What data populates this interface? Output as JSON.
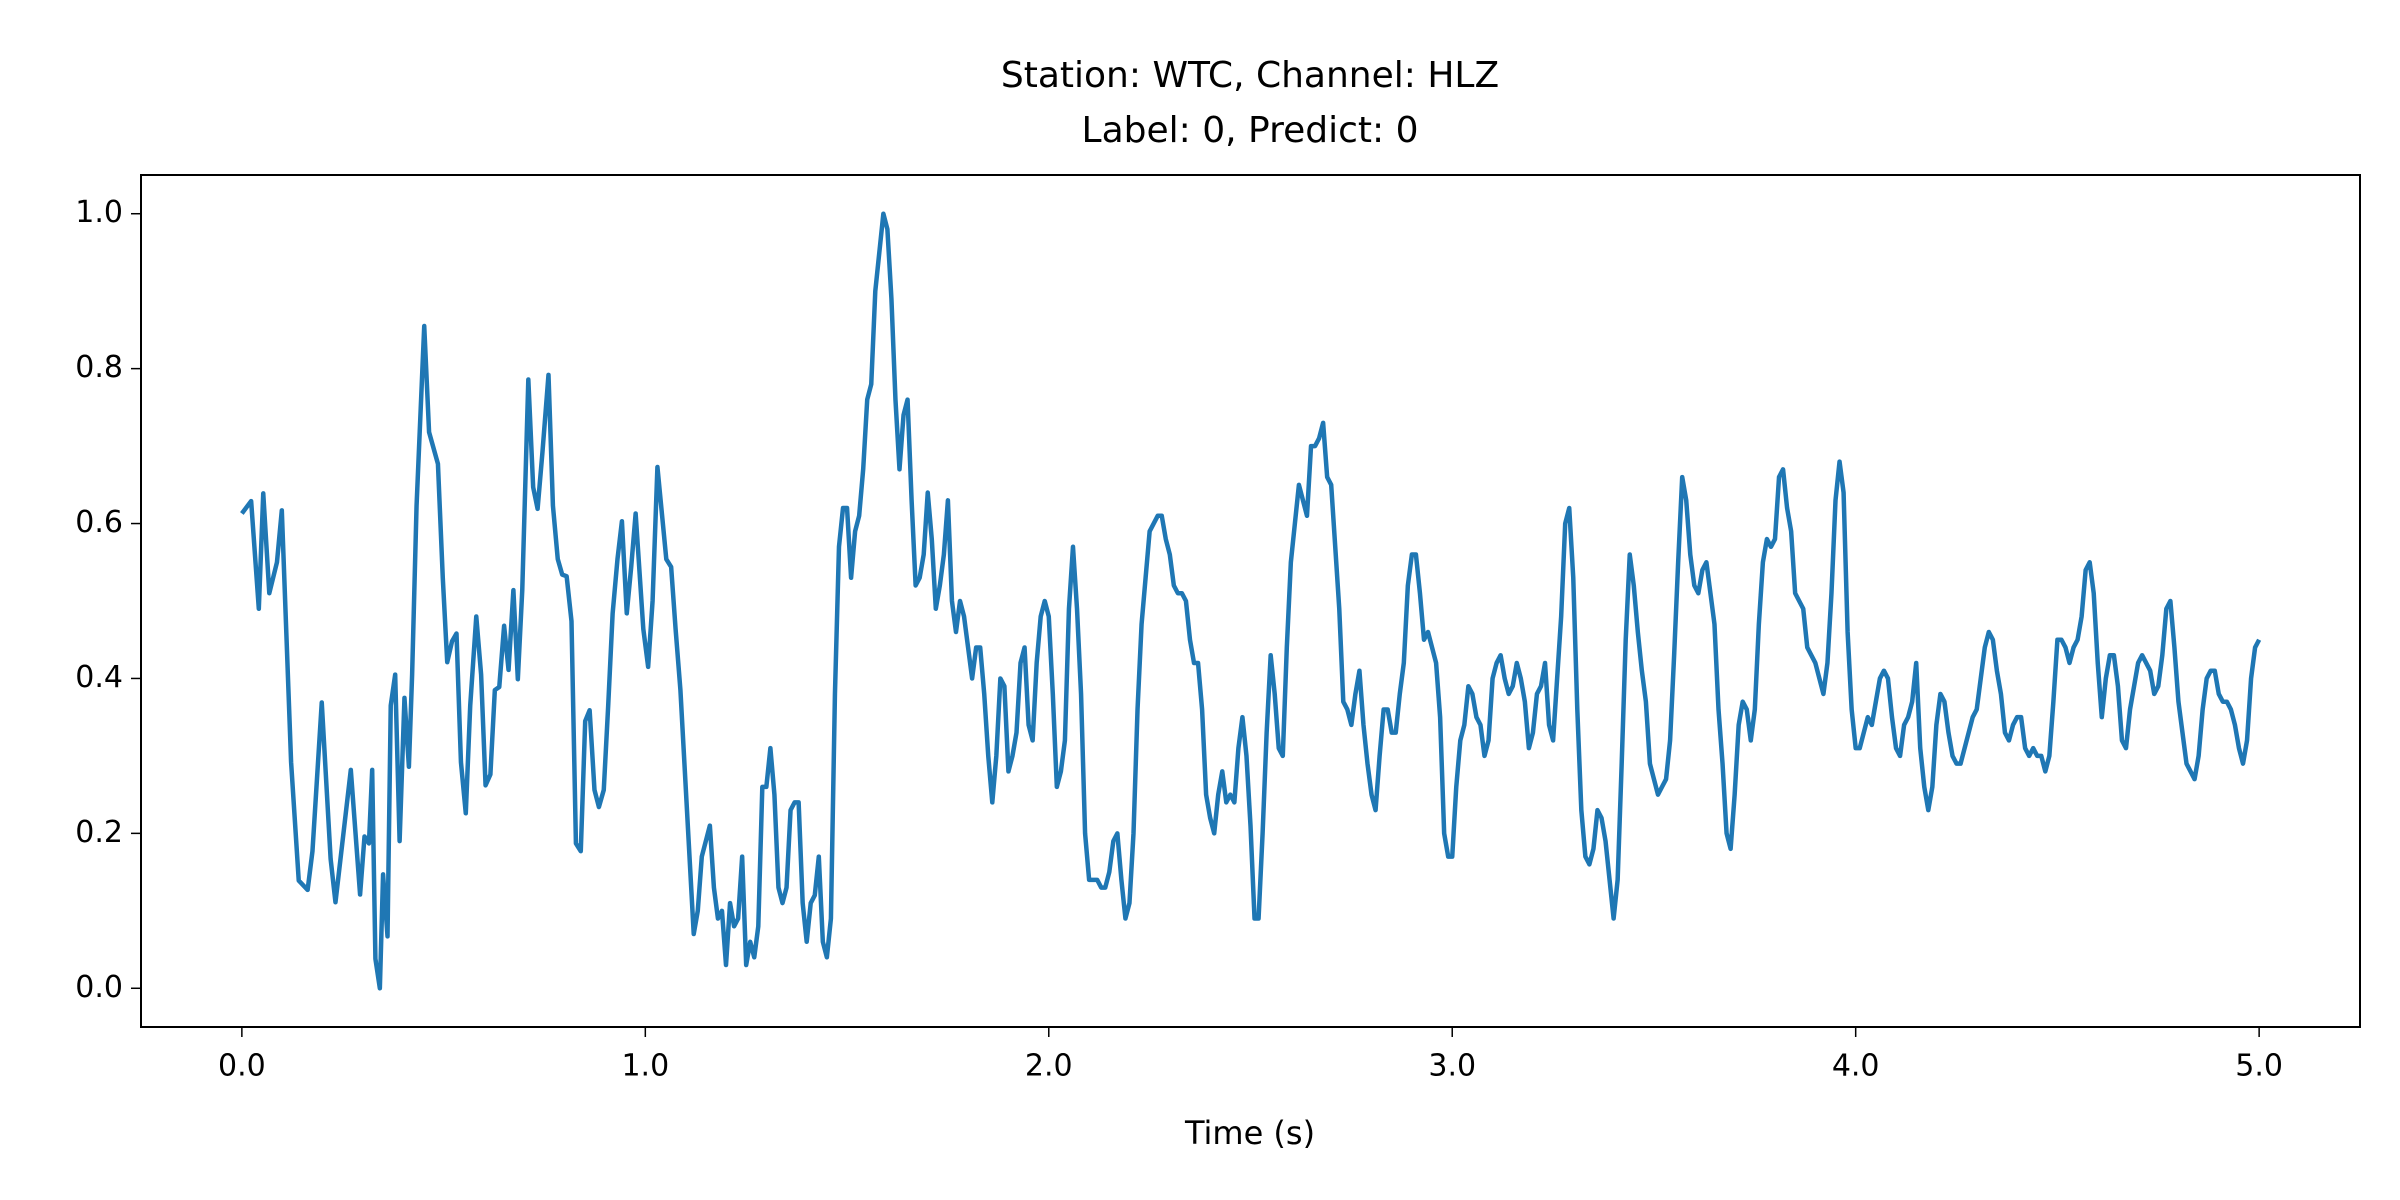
{
  "chart_data": {
    "type": "line",
    "title": [
      "Station: WTC, Channel: HLZ",
      "Label: 0, Predict: 0"
    ],
    "xlabel": "Time (s)",
    "color": "#1f77b4",
    "xlim": [
      -0.25,
      5.25
    ],
    "ylim": [
      -0.05,
      1.05
    ],
    "xticks": [
      {
        "value": 0,
        "label": "0.0"
      },
      {
        "value": 1,
        "label": "1.0"
      },
      {
        "value": 2,
        "label": "2.0"
      },
      {
        "value": 3,
        "label": "3.0"
      },
      {
        "value": 4,
        "label": "4.0"
      },
      {
        "value": 5,
        "label": "5.0"
      }
    ],
    "yticks": [
      {
        "value": 0,
        "label": "0.0"
      },
      0.2,
      0.4,
      0.6,
      0.8,
      {
        "value": 1,
        "label": "1.0"
      }
    ],
    "grid": false,
    "x": [
      0,
      0.023,
      0.042,
      0.053,
      0.068,
      0.087,
      0.099,
      0.122,
      0.141,
      0.163,
      0.175,
      0.198,
      0.22,
      0.232,
      0.27,
      0.293,
      0.304,
      0.315,
      0.323,
      0.331,
      0.342,
      0.35,
      0.361,
      0.369,
      0.38,
      0.391,
      0.403,
      0.414,
      0.422,
      0.433,
      0.452,
      0.464,
      0.486,
      0.498,
      0.509,
      0.521,
      0.532,
      0.543,
      0.555,
      0.566,
      0.581,
      0.593,
      0.604,
      0.616,
      0.627,
      0.638,
      0.65,
      0.661,
      0.673,
      0.684,
      0.695,
      0.71,
      0.722,
      0.733,
      0.745,
      0.76,
      0.771,
      0.783,
      0.794,
      0.805,
      0.817,
      0.828,
      0.84,
      0.851,
      0.862,
      0.874,
      0.885,
      0.897,
      0.908,
      0.919,
      0.931,
      0.942,
      0.954,
      0.965,
      0.976,
      0.995,
      1.007,
      1.018,
      1.03,
      1.052,
      1.064,
      1.075,
      1.087,
      1.12,
      1.13,
      1.14,
      1.15,
      1.16,
      1.17,
      1.18,
      1.19,
      1.2,
      1.21,
      1.22,
      1.23,
      1.24,
      1.25,
      1.26,
      1.27,
      1.28,
      1.29,
      1.3,
      1.31,
      1.32,
      1.33,
      1.34,
      1.35,
      1.36,
      1.37,
      1.38,
      1.39,
      1.4,
      1.41,
      1.42,
      1.43,
      1.44,
      1.45,
      1.46,
      1.47,
      1.48,
      1.49,
      1.5,
      1.51,
      1.52,
      1.53,
      1.54,
      1.55,
      1.56,
      1.57,
      1.58,
      1.59,
      1.6,
      1.61,
      1.62,
      1.63,
      1.64,
      1.65,
      1.66,
      1.67,
      1.68,
      1.69,
      1.7,
      1.71,
      1.72,
      1.73,
      1.74,
      1.75,
      1.76,
      1.77,
      1.78,
      1.79,
      1.8,
      1.81,
      1.82,
      1.83,
      1.84,
      1.85,
      1.86,
      1.87,
      1.88,
      1.89,
      1.9,
      1.91,
      1.92,
      1.93,
      1.94,
      1.95,
      1.96,
      1.97,
      1.98,
      1.99,
      2,
      2.01,
      2.02,
      2.03,
      2.04,
      2.05,
      2.06,
      2.07,
      2.08,
      2.09,
      2.1,
      2.11,
      2.12,
      2.13,
      2.14,
      2.15,
      2.16,
      2.17,
      2.18,
      2.19,
      2.2,
      2.21,
      2.22,
      2.23,
      2.24,
      2.25,
      2.26,
      2.27,
      2.28,
      2.29,
      2.3,
      2.31,
      2.32,
      2.33,
      2.34,
      2.35,
      2.36,
      2.37,
      2.38,
      2.39,
      2.4,
      2.41,
      2.42,
      2.43,
      2.44,
      2.45,
      2.46,
      2.47,
      2.48,
      2.49,
      2.5,
      2.51,
      2.52,
      2.53,
      2.54,
      2.55,
      2.56,
      2.57,
      2.58,
      2.59,
      2.6,
      2.61,
      2.62,
      2.63,
      2.64,
      2.65,
      2.66,
      2.67,
      2.68,
      2.69,
      2.7,
      2.71,
      2.72,
      2.73,
      2.74,
      2.75,
      2.76,
      2.77,
      2.78,
      2.79,
      2.8,
      2.81,
      2.82,
      2.83,
      2.84,
      2.85,
      2.86,
      2.87,
      2.88,
      2.89,
      2.9,
      2.91,
      2.92,
      2.93,
      2.94,
      2.95,
      2.96,
      2.97,
      2.98,
      2.99,
      3,
      3.01,
      3.02,
      3.03,
      3.04,
      3.05,
      3.06,
      3.07,
      3.08,
      3.09,
      3.1,
      3.11,
      3.12,
      3.13,
      3.14,
      3.15,
      3.16,
      3.17,
      3.18,
      3.19,
      3.2,
      3.21,
      3.22,
      3.23,
      3.24,
      3.25,
      3.26,
      3.27,
      3.28,
      3.29,
      3.3,
      3.31,
      3.32,
      3.33,
      3.34,
      3.35,
      3.36,
      3.37,
      3.38,
      3.39,
      3.4,
      3.41,
      3.42,
      3.43,
      3.44,
      3.45,
      3.46,
      3.47,
      3.48,
      3.49,
      3.5,
      3.51,
      3.52,
      3.53,
      3.54,
      3.55,
      3.56,
      3.57,
      3.58,
      3.59,
      3.6,
      3.61,
      3.62,
      3.63,
      3.64,
      3.65,
      3.66,
      3.67,
      3.68,
      3.69,
      3.7,
      3.71,
      3.72,
      3.73,
      3.74,
      3.75,
      3.76,
      3.77,
      3.78,
      3.79,
      3.8,
      3.81,
      3.82,
      3.83,
      3.84,
      3.85,
      3.86,
      3.87,
      3.88,
      3.89,
      3.9,
      3.91,
      3.92,
      3.93,
      3.94,
      3.95,
      3.96,
      3.97,
      3.98,
      3.99,
      4,
      4.01,
      4.02,
      4.03,
      4.04,
      4.05,
      4.06,
      4.07,
      4.08,
      4.09,
      4.1,
      4.11,
      4.12,
      4.13,
      4.14,
      4.15,
      4.16,
      4.17,
      4.18,
      4.19,
      4.2,
      4.21,
      4.22,
      4.23,
      4.24,
      4.25,
      4.26,
      4.27,
      4.28,
      4.29,
      4.3,
      4.31,
      4.32,
      4.33,
      4.34,
      4.35,
      4.36,
      4.37,
      4.38,
      4.39,
      4.4,
      4.41,
      4.42,
      4.43,
      4.44,
      4.45,
      4.46,
      4.47,
      4.48,
      4.49,
      4.5,
      4.51,
      4.52,
      4.53,
      4.54,
      4.55,
      4.56,
      4.57,
      4.58,
      4.59,
      4.6,
      4.61,
      4.62,
      4.63,
      4.64,
      4.65,
      4.66,
      4.67,
      4.68,
      4.69,
      4.7,
      4.71,
      4.72,
      4.73,
      4.74,
      4.75,
      4.76,
      4.77,
      4.78,
      4.79,
      4.8,
      4.81,
      4.82,
      4.83,
      4.84,
      4.85,
      4.86,
      4.87,
      4.88,
      4.89,
      4.9,
      4.91,
      4.92,
      4.93,
      4.94,
      4.95,
      4.96,
      4.97,
      4.98,
      4.99,
      5
    ],
    "values": [
      0.613,
      0.629,
      0.49,
      0.639,
      0.51,
      0.55,
      0.617,
      0.292,
      0.139,
      0.127,
      0.177,
      0.369,
      0.167,
      0.111,
      0.282,
      0.121,
      0.196,
      0.187,
      0.282,
      0.038,
      0,
      0.147,
      0.067,
      0.365,
      0.405,
      0.19,
      0.375,
      0.286,
      0.405,
      0.623,
      0.855,
      0.718,
      0.677,
      0.53,
      0.421,
      0.448,
      0.458,
      0.292,
      0.226,
      0.365,
      0.48,
      0.405,
      0.262,
      0.276,
      0.385,
      0.389,
      0.468,
      0.411,
      0.514,
      0.399,
      0.514,
      0.786,
      0.647,
      0.619,
      0.692,
      0.792,
      0.623,
      0.554,
      0.534,
      0.532,
      0.474,
      0.187,
      0.177,
      0.345,
      0.359,
      0.256,
      0.234,
      0.256,
      0.365,
      0.484,
      0.554,
      0.603,
      0.484,
      0.544,
      0.613,
      0.464,
      0.415,
      0.5,
      0.673,
      0.554,
      0.544,
      0.464,
      0.385,
      0.07,
      0.1,
      0.17,
      0.19,
      0.21,
      0.13,
      0.09,
      0.1,
      0.03,
      0.11,
      0.08,
      0.09,
      0.17,
      0.03,
      0.06,
      0.04,
      0.08,
      0.26,
      0.26,
      0.31,
      0.25,
      0.13,
      0.11,
      0.13,
      0.23,
      0.24,
      0.24,
      0.11,
      0.06,
      0.11,
      0.12,
      0.17,
      0.06,
      0.04,
      0.09,
      0.38,
      0.57,
      0.62,
      0.62,
      0.53,
      0.59,
      0.61,
      0.67,
      0.76,
      0.78,
      0.9,
      0.95,
      1.0,
      0.98,
      0.89,
      0.76,
      0.67,
      0.74,
      0.76,
      0.63,
      0.52,
      0.53,
      0.56,
      0.64,
      0.58,
      0.49,
      0.52,
      0.56,
      0.63,
      0.5,
      0.46,
      0.5,
      0.48,
      0.44,
      0.4,
      0.44,
      0.44,
      0.38,
      0.3,
      0.24,
      0.3,
      0.4,
      0.39,
      0.28,
      0.3,
      0.33,
      0.42,
      0.44,
      0.34,
      0.32,
      0.42,
      0.48,
      0.5,
      0.48,
      0.38,
      0.26,
      0.28,
      0.32,
      0.49,
      0.57,
      0.49,
      0.38,
      0.2,
      0.14,
      0.14,
      0.14,
      0.13,
      0.13,
      0.15,
      0.19,
      0.2,
      0.14,
      0.09,
      0.11,
      0.2,
      0.36,
      0.47,
      0.53,
      0.59,
      0.6,
      0.61,
      0.61,
      0.58,
      0.56,
      0.52,
      0.51,
      0.51,
      0.5,
      0.45,
      0.42,
      0.42,
      0.36,
      0.25,
      0.22,
      0.2,
      0.25,
      0.28,
      0.24,
      0.25,
      0.24,
      0.31,
      0.35,
      0.3,
      0.21,
      0.09,
      0.09,
      0.2,
      0.33,
      0.43,
      0.38,
      0.31,
      0.3,
      0.44,
      0.55,
      0.6,
      0.65,
      0.63,
      0.61,
      0.7,
      0.7,
      0.71,
      0.73,
      0.66,
      0.65,
      0.57,
      0.49,
      0.37,
      0.36,
      0.34,
      0.38,
      0.41,
      0.34,
      0.29,
      0.25,
      0.23,
      0.3,
      0.36,
      0.36,
      0.33,
      0.33,
      0.38,
      0.42,
      0.52,
      0.56,
      0.56,
      0.51,
      0.45,
      0.46,
      0.44,
      0.42,
      0.35,
      0.2,
      0.17,
      0.17,
      0.26,
      0.32,
      0.34,
      0.39,
      0.38,
      0.35,
      0.34,
      0.3,
      0.32,
      0.4,
      0.42,
      0.43,
      0.4,
      0.38,
      0.39,
      0.42,
      0.4,
      0.37,
      0.31,
      0.33,
      0.38,
      0.39,
      0.42,
      0.34,
      0.32,
      0.4,
      0.48,
      0.6,
      0.62,
      0.53,
      0.36,
      0.23,
      0.17,
      0.16,
      0.18,
      0.23,
      0.22,
      0.19,
      0.14,
      0.09,
      0.14,
      0.29,
      0.45,
      0.56,
      0.52,
      0.46,
      0.41,
      0.37,
      0.29,
      0.27,
      0.25,
      0.26,
      0.27,
      0.32,
      0.43,
      0.55,
      0.66,
      0.63,
      0.56,
      0.52,
      0.51,
      0.54,
      0.55,
      0.51,
      0.47,
      0.36,
      0.29,
      0.2,
      0.18,
      0.25,
      0.34,
      0.37,
      0.36,
      0.32,
      0.36,
      0.47,
      0.55,
      0.58,
      0.57,
      0.58,
      0.66,
      0.67,
      0.62,
      0.59,
      0.51,
      0.5,
      0.49,
      0.44,
      0.43,
      0.42,
      0.4,
      0.38,
      0.42,
      0.51,
      0.63,
      0.68,
      0.64,
      0.46,
      0.36,
      0.31,
      0.31,
      0.33,
      0.35,
      0.34,
      0.37,
      0.4,
      0.41,
      0.4,
      0.35,
      0.31,
      0.3,
      0.34,
      0.35,
      0.37,
      0.42,
      0.31,
      0.26,
      0.23,
      0.26,
      0.34,
      0.38,
      0.37,
      0.33,
      0.3,
      0.29,
      0.29,
      0.31,
      0.33,
      0.35,
      0.36,
      0.4,
      0.44,
      0.46,
      0.45,
      0.41,
      0.38,
      0.33,
      0.32,
      0.34,
      0.35,
      0.35,
      0.31,
      0.3,
      0.31,
      0.3,
      0.3,
      0.28,
      0.3,
      0.37,
      0.45,
      0.45,
      0.44,
      0.42,
      0.44,
      0.45,
      0.48,
      0.54,
      0.55,
      0.51,
      0.42,
      0.35,
      0.4,
      0.43,
      0.43,
      0.39,
      0.32,
      0.31,
      0.36,
      0.39,
      0.42,
      0.43,
      0.42,
      0.41,
      0.38,
      0.39,
      0.43,
      0.49,
      0.5,
      0.44,
      0.37,
      0.33,
      0.29,
      0.28,
      0.27,
      0.3,
      0.36,
      0.4,
      0.41,
      0.41,
      0.38,
      0.37,
      0.37,
      0.36,
      0.34,
      0.31,
      0.29,
      0.32,
      0.4,
      0.44,
      0.45
    ]
  }
}
